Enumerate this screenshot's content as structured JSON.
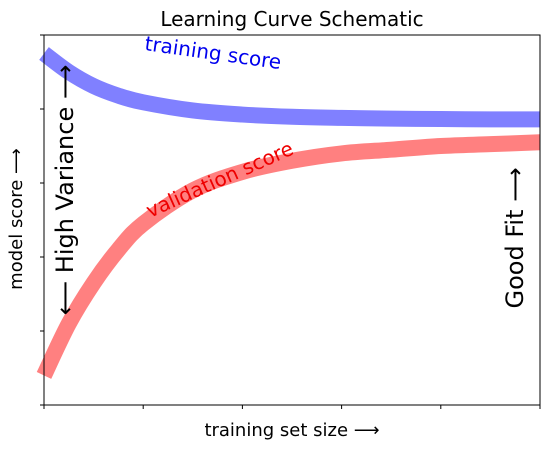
{
  "chart_data": {
    "type": "line",
    "title": "Learning Curve Schematic",
    "xlabel": "training set size ⟶",
    "ylabel": "model score ⟶",
    "xlim": [
      0,
      1
    ],
    "ylim": [
      0,
      1
    ],
    "x_tick_labels": [
      "",
      "",
      "",
      "",
      "",
      ""
    ],
    "y_tick_labels": [
      "",
      "",
      "",
      "",
      "",
      ""
    ],
    "grid": false,
    "series": [
      {
        "name": "training score",
        "color": "#8080ff",
        "x": [
          0,
          0.05,
          0.1,
          0.15,
          0.2,
          0.3,
          0.4,
          0.5,
          0.6,
          0.7,
          0.8,
          0.9,
          1.0
        ],
        "values": [
          0.95,
          0.9,
          0.862,
          0.836,
          0.818,
          0.796,
          0.785,
          0.779,
          0.776,
          0.774,
          0.773,
          0.772,
          0.772
        ]
      },
      {
        "name": "validation score",
        "color": "#ff8080",
        "x": [
          0,
          0.05,
          0.1,
          0.15,
          0.2,
          0.3,
          0.4,
          0.5,
          0.6,
          0.7,
          0.8,
          0.9,
          1.0
        ],
        "values": [
          0.08,
          0.22,
          0.33,
          0.42,
          0.49,
          0.58,
          0.63,
          0.66,
          0.68,
          0.69,
          0.7,
          0.705,
          0.71
        ]
      }
    ],
    "annotations": [
      {
        "text": "High Variance",
        "arrows": "⟵ High Variance ⟶"
      },
      {
        "text": "Good Fit",
        "arrows": "Good Fit ⟶"
      }
    ]
  }
}
